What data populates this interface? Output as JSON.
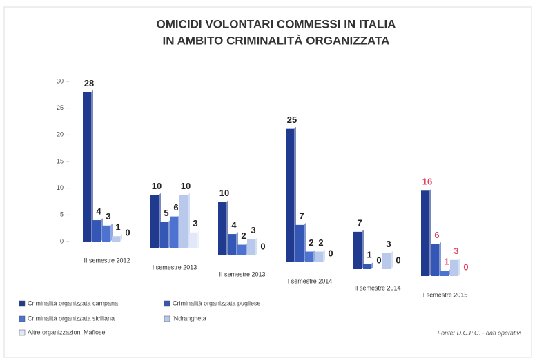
{
  "chart_data": {
    "type": "bar",
    "title": [
      "OMICIDI VOLONTARI COMMESSI IN ITALIA",
      "IN AMBITO CRIMINALITÀ ORGANIZZATA"
    ],
    "categories": [
      "II semestre 2012",
      "I semestre 2013",
      "II semestre 2013",
      "I semestre 2014",
      "II semestre 2014",
      "I semestre 2015"
    ],
    "series": [
      {
        "name": "Criminalità organizzata campana",
        "color": "#1f3a8f",
        "values": [
          28,
          10,
          10,
          25,
          7,
          16
        ]
      },
      {
        "name": "Criminalità organizzata pugliese",
        "color": "#3456b4",
        "values": [
          4,
          5,
          4,
          7,
          1,
          6
        ]
      },
      {
        "name": "Criminalità organizzata siciliana",
        "color": "#4d72cf",
        "values": [
          3,
          6,
          2,
          2,
          0,
          1
        ]
      },
      {
        "name": "'Ndrangheta",
        "color": "#b9c9ec",
        "values": [
          1,
          10,
          3,
          2,
          3,
          3
        ]
      },
      {
        "name": "Altre organizzazioni Mafiose",
        "color": "#e1e8f7",
        "values": [
          0,
          3,
          0,
          0,
          0,
          0
        ]
      }
    ],
    "label_colors": [
      "#222222",
      "#222222",
      "#222222",
      "#222222",
      "#222222",
      "#e0405a"
    ],
    "ylim": [
      0,
      30
    ],
    "yticks": [
      0,
      5,
      10,
      15,
      20,
      25,
      30
    ],
    "source": "Fonte: D.C.P.C. - dati operativi"
  }
}
